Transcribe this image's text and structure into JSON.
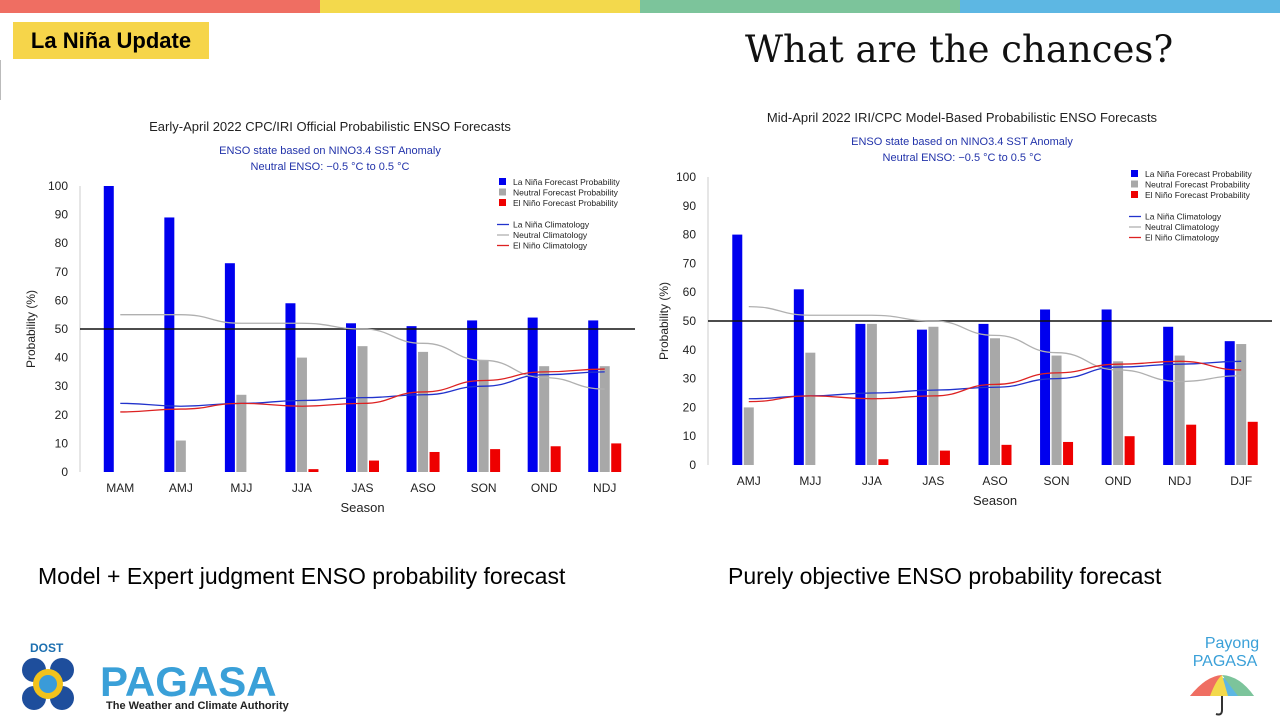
{
  "top_bar_colors": [
    "#ef6e62",
    "#f3d94c",
    "#7cc49b",
    "#5db7e3"
  ],
  "badge": {
    "label": "La Niña Update",
    "color": "#f6d54a"
  },
  "heading": "What are the chances?",
  "captions": {
    "left": "Model + Expert judgment ENSO probability forecast",
    "right": "Purely objective ENSO probability forecast"
  },
  "logos": {
    "left": {
      "top": "DOST",
      "name": "PAGASA",
      "tagline": "The Weather and Climate Authority"
    },
    "right": {
      "line1": "Payong",
      "line2": "PAGASA"
    }
  },
  "colors": {
    "la_nina": "#0000ee",
    "neutral": "#a8a8a8",
    "el_nino": "#ee0000",
    "la_nina_clim": "#2233cc",
    "neutral_clim": "#b0b0b0",
    "el_nino_clim": "#dd2222"
  },
  "chart_data": [
    {
      "type": "bar",
      "title": "Early-April 2022 CPC/IRI Official Probabilistic ENSO Forecasts",
      "subtitle1": "ENSO state based on NINO3.4 SST Anomaly",
      "subtitle2": "Neutral ENSO: −0.5 °C to 0.5 °C",
      "xlabel": "Season",
      "ylabel": "Probability (%)",
      "ylim": [
        0,
        100
      ],
      "yticks": [
        0,
        10,
        20,
        30,
        40,
        50,
        60,
        70,
        80,
        90,
        100
      ],
      "reference_line": 50,
      "grid": false,
      "legend_position": "top-right",
      "legend": [
        "La Niña Forecast Probability",
        "Neutral Forecast Probability",
        "El Niño Forecast Probability",
        "La Niña Climatology",
        "Neutral Climatology",
        "El Niño Climatology"
      ],
      "categories": [
        "MAM",
        "AMJ",
        "MJJ",
        "JJA",
        "JAS",
        "ASO",
        "SON",
        "OND",
        "NDJ"
      ],
      "series": [
        {
          "name": "La Niña Forecast Probability",
          "values": [
            100,
            89,
            73,
            59,
            52,
            51,
            53,
            54,
            53
          ]
        },
        {
          "name": "Neutral Forecast Probability",
          "values": [
            0,
            11,
            27,
            40,
            44,
            42,
            39,
            37,
            37
          ]
        },
        {
          "name": "El Niño Forecast Probability",
          "values": [
            0,
            0,
            0,
            1,
            4,
            7,
            8,
            9,
            10
          ]
        }
      ],
      "climatology": [
        {
          "name": "La Niña Climatology",
          "values": [
            24,
            23,
            24,
            25,
            26,
            27,
            30,
            34,
            35
          ]
        },
        {
          "name": "Neutral Climatology",
          "values": [
            55,
            55,
            52,
            52,
            50,
            45,
            39,
            33,
            29
          ]
        },
        {
          "name": "El Niño Climatology",
          "values": [
            21,
            22,
            24,
            23,
            24,
            28,
            32,
            35,
            36
          ]
        }
      ]
    },
    {
      "type": "bar",
      "title": "Mid-April 2022 IRI/CPC Model-Based Probabilistic ENSO Forecasts",
      "subtitle1": "ENSO state based on NINO3.4 SST Anomaly",
      "subtitle2": "Neutral ENSO: −0.5 °C to 0.5 °C",
      "xlabel": "Season",
      "ylabel": "Probability (%)",
      "ylim": [
        0,
        100
      ],
      "yticks": [
        0,
        10,
        20,
        30,
        40,
        50,
        60,
        70,
        80,
        90,
        100
      ],
      "reference_line": 50,
      "grid": false,
      "legend_position": "top-right",
      "legend": [
        "La Niña Forecast Probability",
        "Neutral Forecast Probability",
        "El Niño Forecast Probability",
        "La Niña Climatology",
        "Neutral Climatology",
        "El Niño Climatology"
      ],
      "categories": [
        "AMJ",
        "MJJ",
        "JJA",
        "JAS",
        "ASO",
        "SON",
        "OND",
        "NDJ",
        "DJF"
      ],
      "series": [
        {
          "name": "La Niña Forecast Probability",
          "values": [
            80,
            61,
            49,
            47,
            49,
            54,
            54,
            48,
            43
          ]
        },
        {
          "name": "Neutral Forecast Probability",
          "values": [
            20,
            39,
            49,
            48,
            44,
            38,
            36,
            38,
            42
          ]
        },
        {
          "name": "El Niño Forecast Probability",
          "values": [
            0,
            0,
            2,
            5,
            7,
            8,
            10,
            14,
            15
          ]
        }
      ],
      "climatology": [
        {
          "name": "La Niña Climatology",
          "values": [
            23,
            24,
            25,
            26,
            27,
            30,
            34,
            35,
            36
          ]
        },
        {
          "name": "Neutral Climatology",
          "values": [
            55,
            52,
            52,
            50,
            45,
            39,
            33,
            29,
            31
          ]
        },
        {
          "name": "El Niño Climatology",
          "values": [
            22,
            24,
            23,
            24,
            28,
            32,
            35,
            36,
            33
          ]
        }
      ]
    }
  ]
}
